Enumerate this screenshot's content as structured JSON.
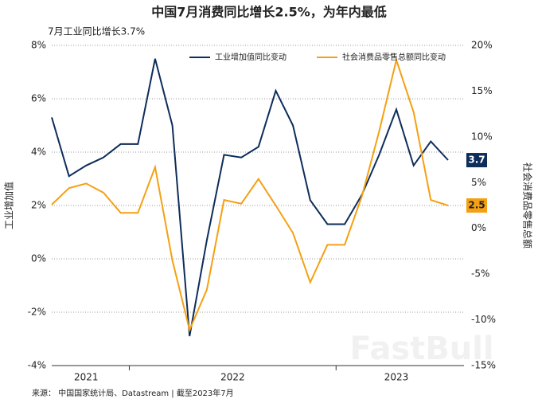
{
  "chart_data": {
    "type": "line",
    "title": "中国7月消费同比增长2.5%，为年内最低",
    "subtitle": "7月工业同比增长3.7%",
    "y_label": "工业增加值",
    "y2_label": "社会消费品零售总额",
    "source": "来源：  中国国家统计局、Datastream | 截至2023年7月",
    "watermark": "FastBull",
    "categories": [
      null,
      null,
      null,
      null,
      null,
      null,
      null,
      null,
      null,
      null,
      null,
      null,
      null,
      null,
      null,
      null,
      null,
      null,
      null,
      null,
      null,
      null,
      null,
      null
    ],
    "x_groups": [
      {
        "label": "2021",
        "from": 0,
        "to": 4
      },
      {
        "label": "2022",
        "from": 5,
        "to": 16
      },
      {
        "label": "2023",
        "from": 17,
        "to": 23
      }
    ],
    "ylim": [
      -4,
      8
    ],
    "yticks": [
      {
        "value": -4,
        "label": "-4%"
      },
      {
        "value": -2,
        "label": "-2%"
      },
      {
        "value": 0,
        "label": "0%"
      },
      {
        "value": 2,
        "label": "2%"
      },
      {
        "value": 4,
        "label": "4%"
      },
      {
        "value": 6,
        "label": "6%"
      },
      {
        "value": 8,
        "label": "8%"
      }
    ],
    "y2lim": [
      -15,
      20
    ],
    "y2ticks": [
      {
        "value": -15,
        "label": "-15%"
      },
      {
        "value": -10,
        "label": "-10%"
      },
      {
        "value": -5,
        "label": "-5%"
      },
      {
        "value": 0,
        "label": "0%"
      },
      {
        "value": 5,
        "label": "5%"
      },
      {
        "value": 10,
        "label": "10%"
      },
      {
        "value": 15,
        "label": "15%"
      },
      {
        "value": 20,
        "label": "20%"
      }
    ],
    "grid": true,
    "legend": "top-right",
    "series": [
      {
        "name": "工业增加值同比变动",
        "color": "#0d2d5a",
        "values": [
          5.3,
          3.1,
          3.5,
          3.8,
          4.3,
          4.3,
          7.5,
          5.0,
          -2.9,
          0.7,
          3.9,
          3.8,
          4.2,
          6.3,
          5.0,
          2.2,
          1.3,
          1.3,
          2.4,
          3.9,
          5.6,
          3.5,
          4.4,
          3.7
        ],
        "value_labels": [
          null,
          null,
          null,
          null,
          null,
          null,
          null,
          null,
          null,
          null,
          null,
          null,
          null,
          null,
          null,
          null,
          null,
          null,
          null,
          null,
          null,
          null,
          null,
          "3.7"
        ]
      },
      {
        "name": "社会消费品零售总额同比变动",
        "color": "#f5a012",
        "axis": "y2",
        "values": [
          2.6,
          4.4,
          4.9,
          3.9,
          1.7,
          1.7,
          6.7,
          -3.5,
          -11.1,
          -6.7,
          3.1,
          2.7,
          5.4,
          2.5,
          -0.5,
          -5.9,
          -1.8,
          -1.8,
          3.5,
          10.6,
          18.4,
          12.7,
          3.1,
          2.5
        ],
        "value_labels": [
          null,
          null,
          null,
          null,
          null,
          null,
          null,
          null,
          null,
          null,
          null,
          null,
          null,
          null,
          null,
          null,
          null,
          null,
          null,
          null,
          null,
          null,
          null,
          "2.5"
        ]
      }
    ]
  }
}
